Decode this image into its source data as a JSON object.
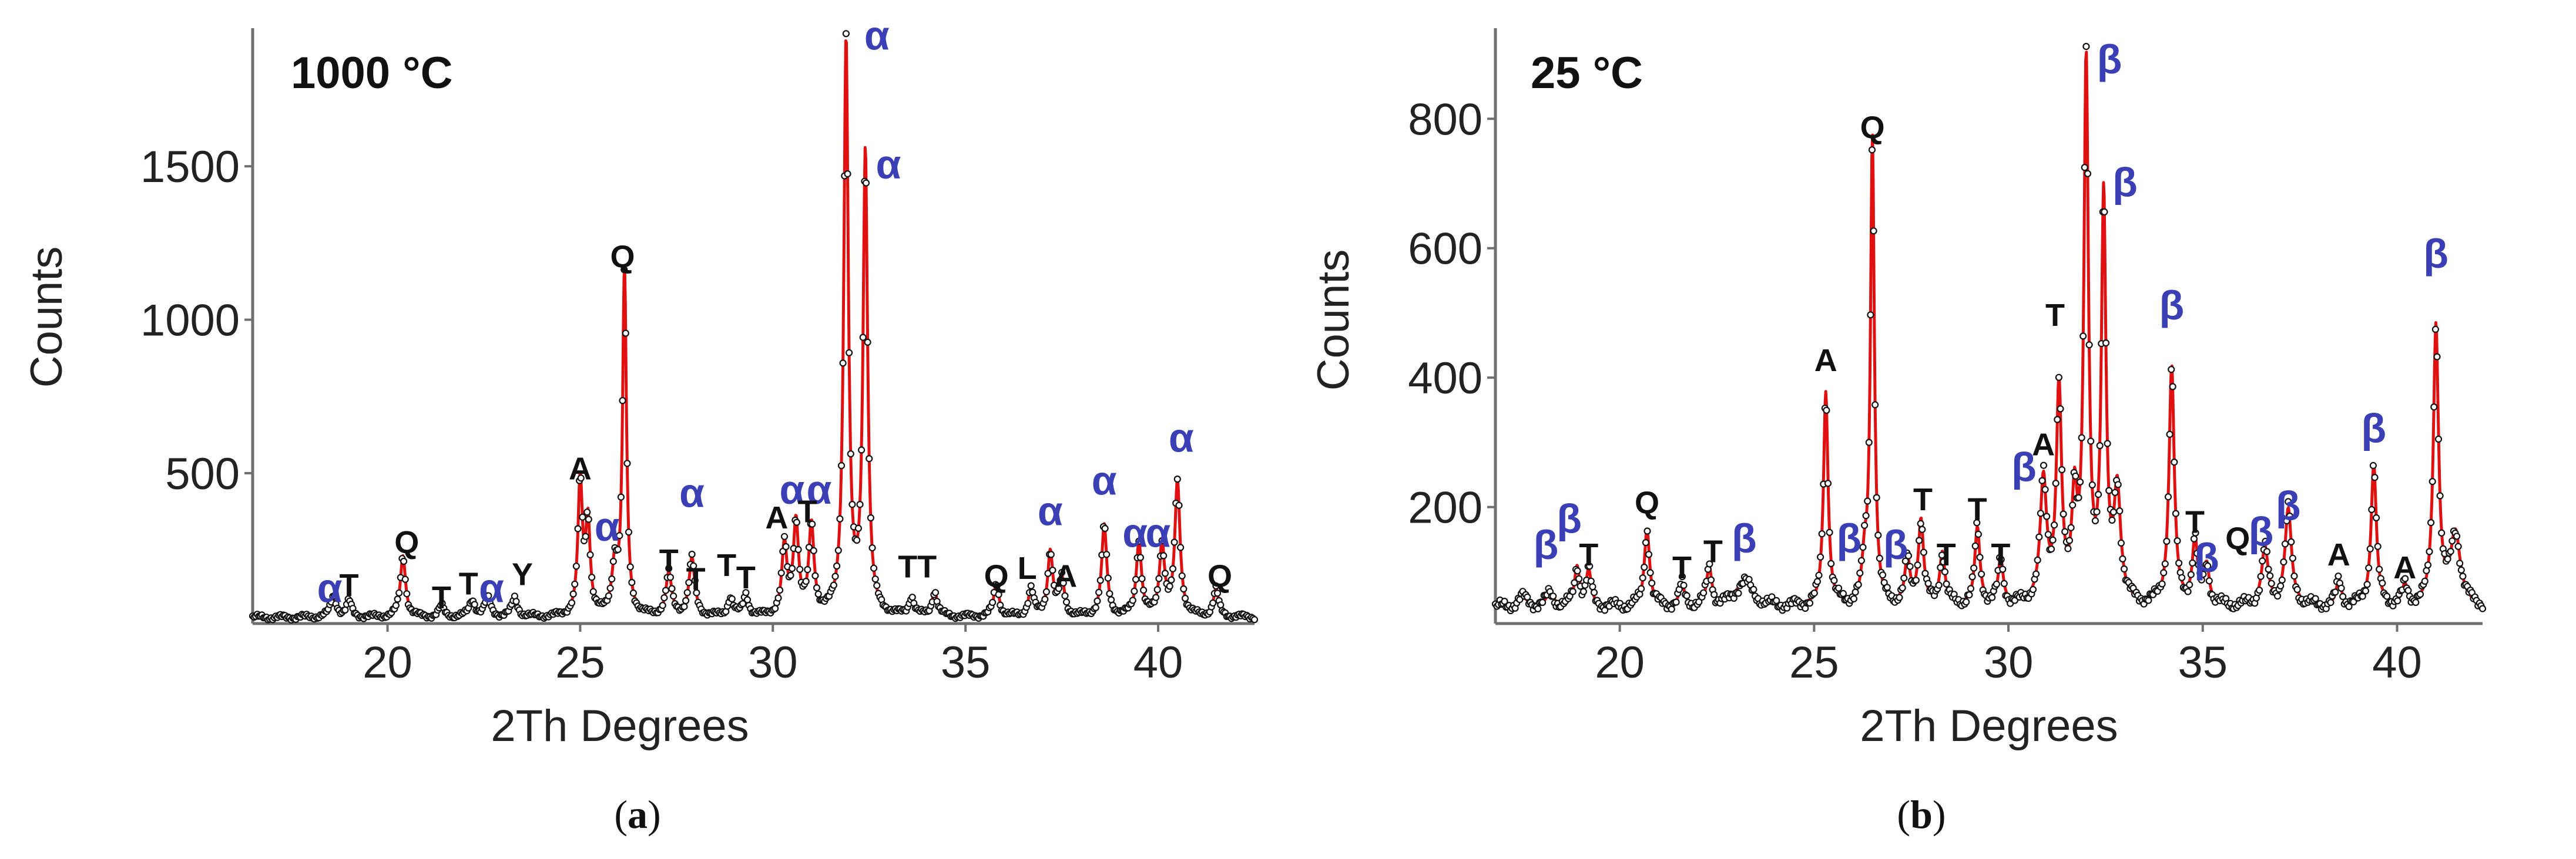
{
  "colors": {
    "fit": "#e01010",
    "obs": "#111111",
    "phase": "#3a3fb5",
    "label": "#111111"
  },
  "chart_data": [
    {
      "type": "line",
      "panel": "(a)",
      "caption_open": "(",
      "caption_letter": "a",
      "caption_close": ")",
      "temperature_label": "1000 °C",
      "xlabel": "2Th Degrees",
      "ylabel": "Counts",
      "xlim": [
        16.5,
        42.5
      ],
      "ylim": [
        10,
        1950
      ],
      "xticks": [
        20,
        25,
        30,
        35,
        40
      ],
      "xtick_labels": [
        "20",
        "25",
        "30",
        "35",
        "40"
      ],
      "yticks": [
        500,
        1000,
        1500
      ],
      "ytick_labels": [
        "500",
        "1000",
        "1500"
      ],
      "baseline": 30,
      "series": [
        {
          "name": "observed",
          "style": "open circles"
        },
        {
          "name": "calculated",
          "style": "red line"
        }
      ],
      "peaks": [
        {
          "x": 18.6,
          "y": 70,
          "w": 0.09
        },
        {
          "x": 19.0,
          "y": 50,
          "w": 0.08
        },
        {
          "x": 20.4,
          "y": 200,
          "w": 0.08
        },
        {
          "x": 21.4,
          "y": 35,
          "w": 0.08
        },
        {
          "x": 22.2,
          "y": 55,
          "w": 0.09
        },
        {
          "x": 22.6,
          "y": 60,
          "w": 0.09
        },
        {
          "x": 23.3,
          "y": 60,
          "w": 0.09
        },
        {
          "x": 25.0,
          "y": 440,
          "w": 0.07
        },
        {
          "x": 25.2,
          "y": 300,
          "w": 0.07
        },
        {
          "x": 25.9,
          "y": 160,
          "w": 0.09
        },
        {
          "x": 26.15,
          "y": 1130,
          "w": 0.06
        },
        {
          "x": 27.3,
          "y": 140,
          "w": 0.09
        },
        {
          "x": 27.9,
          "y": 190,
          "w": 0.09
        },
        {
          "x": 28.9,
          "y": 60,
          "w": 0.08
        },
        {
          "x": 29.3,
          "y": 70,
          "w": 0.08
        },
        {
          "x": 30.3,
          "y": 230,
          "w": 0.08
        },
        {
          "x": 30.6,
          "y": 300,
          "w": 0.08
        },
        {
          "x": 31.0,
          "y": 290,
          "w": 0.08
        },
        {
          "x": 31.9,
          "y": 1870,
          "w": 0.07
        },
        {
          "x": 32.4,
          "y": 1500,
          "w": 0.07
        },
        {
          "x": 33.6,
          "y": 60,
          "w": 0.08
        },
        {
          "x": 34.2,
          "y": 80,
          "w": 0.08
        },
        {
          "x": 35.8,
          "y": 110,
          "w": 0.08
        },
        {
          "x": 36.7,
          "y": 90,
          "w": 0.08
        },
        {
          "x": 37.2,
          "y": 210,
          "w": 0.08
        },
        {
          "x": 37.5,
          "y": 120,
          "w": 0.08
        },
        {
          "x": 38.6,
          "y": 300,
          "w": 0.08
        },
        {
          "x": 39.5,
          "y": 240,
          "w": 0.08
        },
        {
          "x": 40.1,
          "y": 230,
          "w": 0.08
        },
        {
          "x": 40.5,
          "y": 440,
          "w": 0.08
        },
        {
          "x": 41.5,
          "y": 90,
          "w": 0.08
        }
      ],
      "annotations": [
        {
          "text": "α",
          "x": 18.5,
          "y": 80,
          "color": "blue"
        },
        {
          "text": "T",
          "x": 19.0,
          "y": 100,
          "color": "black"
        },
        {
          "text": "Q",
          "x": 20.5,
          "y": 240,
          "color": "black"
        },
        {
          "text": "T",
          "x": 21.4,
          "y": 60,
          "color": "black"
        },
        {
          "text": "T",
          "x": 22.1,
          "y": 105,
          "color": "black"
        },
        {
          "text": "α",
          "x": 22.7,
          "y": 80,
          "color": "blue"
        },
        {
          "text": "Y",
          "x": 23.5,
          "y": 135,
          "color": "black"
        },
        {
          "text": "A",
          "x": 25.0,
          "y": 480,
          "color": "black"
        },
        {
          "text": "α",
          "x": 25.7,
          "y": 280,
          "color": "blue"
        },
        {
          "text": "Q",
          "x": 26.1,
          "y": 1170,
          "color": "black"
        },
        {
          "text": "T",
          "x": 27.3,
          "y": 180,
          "color": "black"
        },
        {
          "text": "α",
          "x": 27.9,
          "y": 390,
          "color": "blue"
        },
        {
          "text": "T",
          "x": 28.0,
          "y": 120,
          "color": "black"
        },
        {
          "text": "T",
          "x": 28.8,
          "y": 165,
          "color": "black"
        },
        {
          "text": "T",
          "x": 29.3,
          "y": 125,
          "color": "black"
        },
        {
          "text": "A",
          "x": 30.1,
          "y": 320,
          "color": "black"
        },
        {
          "text": "α",
          "x": 30.5,
          "y": 400,
          "color": "blue"
        },
        {
          "text": "α",
          "x": 31.2,
          "y": 400,
          "color": "blue"
        },
        {
          "text": "T",
          "x": 30.9,
          "y": 340,
          "color": "black"
        },
        {
          "text": "α",
          "x": 32.7,
          "y": 1880,
          "color": "blue"
        },
        {
          "text": "α",
          "x": 33.0,
          "y": 1460,
          "color": "blue"
        },
        {
          "text": "T",
          "x": 33.5,
          "y": 160,
          "color": "black"
        },
        {
          "text": "T",
          "x": 34.0,
          "y": 160,
          "color": "black"
        },
        {
          "text": "Q",
          "x": 35.8,
          "y": 130,
          "color": "black"
        },
        {
          "text": "L",
          "x": 36.6,
          "y": 155,
          "color": "black"
        },
        {
          "text": "α",
          "x": 37.2,
          "y": 330,
          "color": "blue"
        },
        {
          "text": "A",
          "x": 37.6,
          "y": 130,
          "color": "black"
        },
        {
          "text": "α",
          "x": 38.6,
          "y": 430,
          "color": "blue"
        },
        {
          "text": "α",
          "x": 39.4,
          "y": 260,
          "color": "blue"
        },
        {
          "text": "α",
          "x": 40.0,
          "y": 260,
          "color": "blue"
        },
        {
          "text": "α",
          "x": 40.6,
          "y": 570,
          "color": "blue"
        },
        {
          "text": "Q",
          "x": 41.6,
          "y": 130,
          "color": "black"
        }
      ]
    },
    {
      "type": "line",
      "panel": "(b)",
      "caption_open": "(",
      "caption_letter": "b",
      "caption_close": ")",
      "temperature_label": "25 °C",
      "xlabel": "2Th Degrees",
      "ylabel": "Counts",
      "xlim": [
        16.8,
        42.2
      ],
      "ylim": [
        20,
        940
      ],
      "xticks": [
        20,
        25,
        30,
        35,
        40
      ],
      "xtick_labels": [
        "20",
        "25",
        "30",
        "35",
        "40"
      ],
      "yticks": [
        200,
        400,
        600,
        800
      ],
      "ytick_labels": [
        "200",
        "400",
        "600",
        "800"
      ],
      "baseline": 45,
      "series": [
        {
          "name": "observed",
          "style": "open circles"
        },
        {
          "name": "calculated",
          "style": "red line"
        }
      ],
      "peaks": [
        {
          "x": 17.5,
          "y": 15,
          "w": 0.15
        },
        {
          "x": 18.2,
          "y": 20,
          "w": 0.12
        },
        {
          "x": 18.9,
          "y": 60,
          "w": 0.08
        },
        {
          "x": 19.2,
          "y": 55,
          "w": 0.08
        },
        {
          "x": 20.7,
          "y": 120,
          "w": 0.08
        },
        {
          "x": 21.6,
          "y": 35,
          "w": 0.08
        },
        {
          "x": 22.3,
          "y": 60,
          "w": 0.08
        },
        {
          "x": 23.2,
          "y": 40,
          "w": 0.25
        },
        {
          "x": 25.3,
          "y": 330,
          "w": 0.07
        },
        {
          "x": 26.3,
          "y": 60,
          "w": 0.08
        },
        {
          "x": 26.5,
          "y": 720,
          "w": 0.06
        },
        {
          "x": 27.4,
          "y": 70,
          "w": 0.08
        },
        {
          "x": 27.75,
          "y": 130,
          "w": 0.08
        },
        {
          "x": 28.3,
          "y": 80,
          "w": 0.08
        },
        {
          "x": 29.2,
          "y": 120,
          "w": 0.08
        },
        {
          "x": 29.8,
          "y": 70,
          "w": 0.08
        },
        {
          "x": 30.9,
          "y": 190,
          "w": 0.1
        },
        {
          "x": 31.3,
          "y": 330,
          "w": 0.08
        },
        {
          "x": 31.7,
          "y": 150,
          "w": 0.08
        },
        {
          "x": 32.0,
          "y": 830,
          "w": 0.07
        },
        {
          "x": 32.45,
          "y": 620,
          "w": 0.07
        },
        {
          "x": 32.8,
          "y": 170,
          "w": 0.1
        },
        {
          "x": 34.2,
          "y": 370,
          "w": 0.08
        },
        {
          "x": 34.8,
          "y": 100,
          "w": 0.08
        },
        {
          "x": 35.1,
          "y": 60,
          "w": 0.08
        },
        {
          "x": 36.6,
          "y": 90,
          "w": 0.1
        },
        {
          "x": 37.2,
          "y": 150,
          "w": 0.1
        },
        {
          "x": 38.5,
          "y": 40,
          "w": 0.08
        },
        {
          "x": 39.4,
          "y": 220,
          "w": 0.08
        },
        {
          "x": 40.2,
          "y": 30,
          "w": 0.08
        },
        {
          "x": 41.0,
          "y": 430,
          "w": 0.08
        },
        {
          "x": 41.5,
          "y": 110,
          "w": 0.15
        }
      ],
      "annotations": [
        {
          "text": "β",
          "x": 18.1,
          "y": 120,
          "color": "blue"
        },
        {
          "text": "β",
          "x": 18.7,
          "y": 160,
          "color": "blue"
        },
        {
          "text": "T",
          "x": 19.2,
          "y": 110,
          "color": "black"
        },
        {
          "text": "Q",
          "x": 20.7,
          "y": 190,
          "color": "black"
        },
        {
          "text": "T",
          "x": 21.6,
          "y": 90,
          "color": "black"
        },
        {
          "text": "T",
          "x": 22.4,
          "y": 115,
          "color": "black"
        },
        {
          "text": "β",
          "x": 23.2,
          "y": 130,
          "color": "blue"
        },
        {
          "text": "A",
          "x": 25.3,
          "y": 410,
          "color": "black"
        },
        {
          "text": "β",
          "x": 25.9,
          "y": 130,
          "color": "blue"
        },
        {
          "text": "Q",
          "x": 26.5,
          "y": 770,
          "color": "black"
        },
        {
          "text": "β",
          "x": 27.1,
          "y": 120,
          "color": "blue"
        },
        {
          "text": "T",
          "x": 27.8,
          "y": 195,
          "color": "black"
        },
        {
          "text": "T",
          "x": 28.4,
          "y": 110,
          "color": "black"
        },
        {
          "text": "T",
          "x": 29.2,
          "y": 180,
          "color": "black"
        },
        {
          "text": "T",
          "x": 29.8,
          "y": 110,
          "color": "black"
        },
        {
          "text": "β",
          "x": 30.4,
          "y": 240,
          "color": "blue"
        },
        {
          "text": "A",
          "x": 30.9,
          "y": 280,
          "color": "black"
        },
        {
          "text": "T",
          "x": 31.2,
          "y": 480,
          "color": "black"
        },
        {
          "text": "β",
          "x": 32.6,
          "y": 870,
          "color": "blue"
        },
        {
          "text": "β",
          "x": 33.0,
          "y": 680,
          "color": "blue"
        },
        {
          "text": "β",
          "x": 34.2,
          "y": 490,
          "color": "blue"
        },
        {
          "text": "T",
          "x": 34.8,
          "y": 160,
          "color": "black"
        },
        {
          "text": "β",
          "x": 35.1,
          "y": 100,
          "color": "blue"
        },
        {
          "text": "Q",
          "x": 35.9,
          "y": 135,
          "color": "black"
        },
        {
          "text": "β",
          "x": 36.5,
          "y": 140,
          "color": "blue"
        },
        {
          "text": "β",
          "x": 37.2,
          "y": 180,
          "color": "blue"
        },
        {
          "text": "A",
          "x": 38.5,
          "y": 110,
          "color": "black"
        },
        {
          "text": "β",
          "x": 39.4,
          "y": 300,
          "color": "blue"
        },
        {
          "text": "A",
          "x": 40.2,
          "y": 90,
          "color": "black"
        },
        {
          "text": "β",
          "x": 41.0,
          "y": 570,
          "color": "blue"
        }
      ]
    }
  ]
}
